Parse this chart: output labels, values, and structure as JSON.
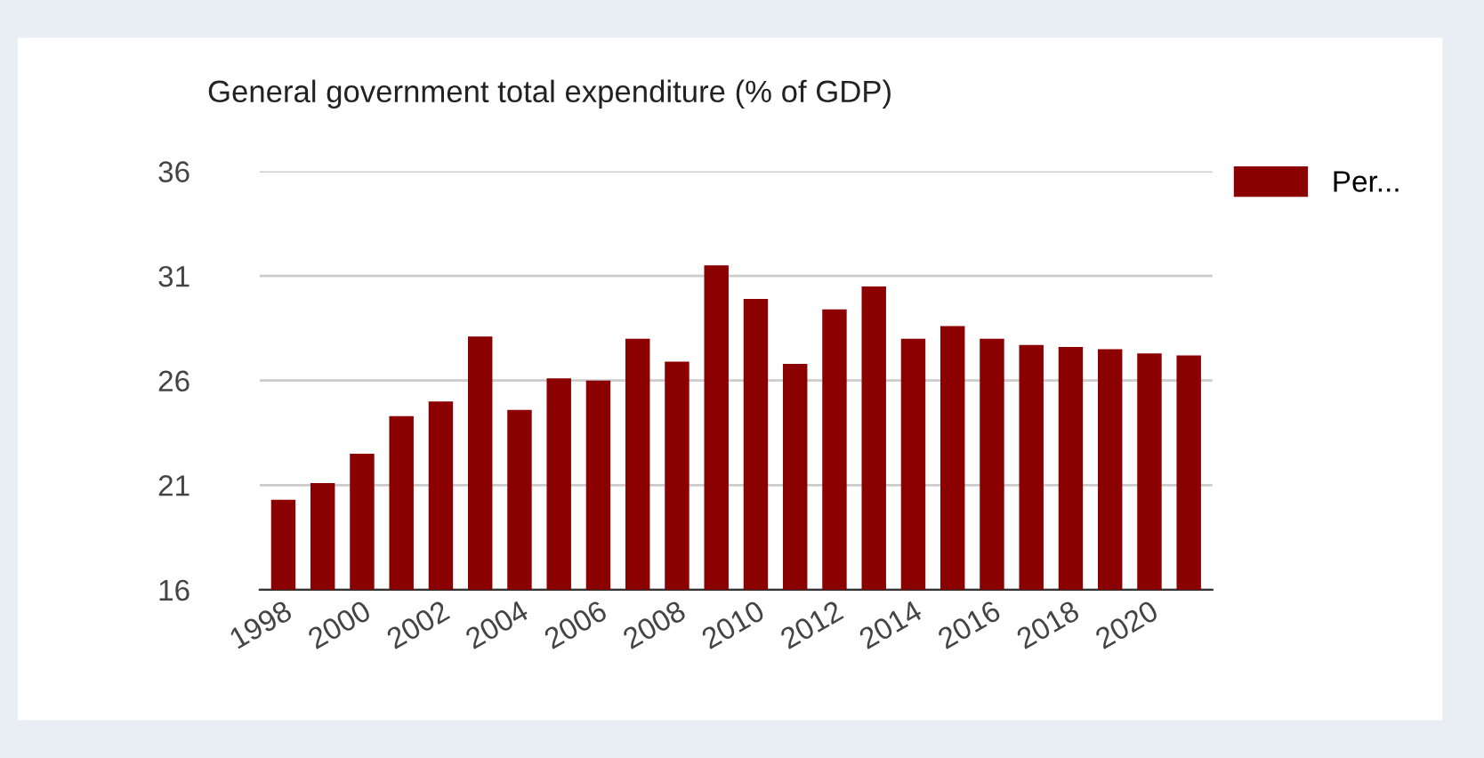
{
  "chart_data": {
    "type": "bar",
    "title": "General government total expenditure (% of GDP)",
    "categories": [
      "1998",
      null,
      "2000",
      null,
      "2002",
      null,
      "2004",
      null,
      "2006",
      null,
      "2008",
      null,
      "2010",
      null,
      "2012",
      null,
      "2014",
      null,
      "2016",
      null,
      "2018",
      null,
      "2020",
      null
    ],
    "series": [
      {
        "name": "Per...",
        "color": "#8b0000",
        "values": [
          20.3,
          21.1,
          22.5,
          24.3,
          25.0,
          28.1,
          24.6,
          26.1,
          26.0,
          28.0,
          26.9,
          31.5,
          29.9,
          26.8,
          29.4,
          30.5,
          28.0,
          28.6,
          28.0,
          27.7,
          27.6,
          27.5,
          27.3,
          27.2
        ]
      }
    ],
    "ylim": [
      16,
      36
    ],
    "yticks": [
      16,
      21,
      26,
      31,
      36
    ],
    "grid": "y",
    "legend": "top right"
  }
}
